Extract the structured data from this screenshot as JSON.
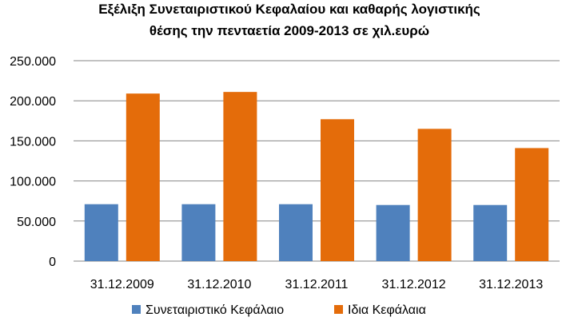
{
  "chart_data": {
    "type": "bar",
    "title": [
      "Εξέλιξη Συνεταιριστικού Κεφαλαίου και καθαρής λογιστικής",
      "θέσης την πενταετία 2009-2013 σε χιλ.ευρώ"
    ],
    "categories": [
      "31.12.2009",
      "31.12.2010",
      "31.12.2011",
      "31.12.2012",
      "31.12.2013"
    ],
    "series": [
      {
        "name": "Συνεταιριστικό Κεφάλαιο",
        "color": "#4F81BD",
        "values": [
          71000,
          71000,
          71000,
          70000,
          70000
        ]
      },
      {
        "name": "Ιδια Κεφάλαια",
        "color": "#E46C0A",
        "values": [
          209000,
          211000,
          177000,
          165000,
          141000
        ]
      }
    ],
    "ylim": [
      0,
      250000
    ],
    "yticks": [
      0,
      50000,
      100000,
      150000,
      200000,
      250000
    ],
    "ytick_labels": [
      "0",
      "50.000",
      "100.000",
      "150.000",
      "200.000",
      "250.000"
    ],
    "grid": true,
    "legend_position": "bottom"
  }
}
